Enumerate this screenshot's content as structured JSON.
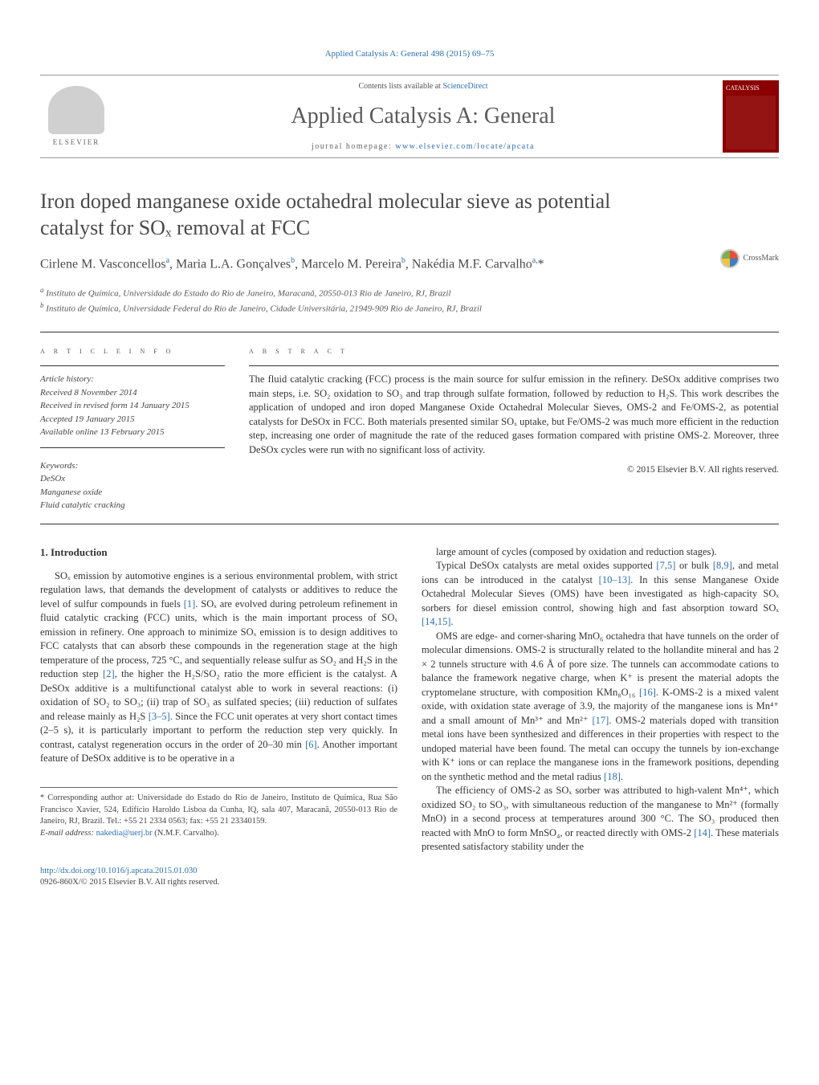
{
  "journal_ref": "Applied Catalysis A: General 498 (2015) 69–75",
  "header": {
    "contents_prefix": "Contents lists available at ",
    "contents_link": "ScienceDirect",
    "journal_title": "Applied Catalysis A: General",
    "homepage_prefix": "journal homepage: ",
    "homepage_link": "www.elsevier.com/locate/apcata",
    "elsevier_label": "ELSEVIER",
    "cover_label": "CATALYSIS"
  },
  "crossmark_label": "CrossMark",
  "title_line1": "Iron doped manganese oxide octahedral molecular sieve as potential",
  "title_line2": "catalyst for SOₓ removal at FCC",
  "authors_html": "Cirlene M. Vasconcellos<span class='sup'>a</span>, Maria L.A. Gonçalves<span class='sup'>b</span>, Marcelo M. Pereira<span class='sup'>b</span>, Nakédia M.F. Carvalho<span class='sup'>a,</span>*",
  "affiliations": {
    "a": "Instituto de Química, Universidade do Estado do Rio de Janeiro, Maracanã, 20550-013 Rio de Janeiro, RJ, Brazil",
    "b": "Instituto de Química, Universidade Federal do Rio de Janeiro, Cidade Universitária, 21949-909 Rio de Janeiro, RJ, Brazil"
  },
  "article_info": {
    "heading": "A R T I C L E   I N F O",
    "history_head": "Article history:",
    "received": "Received 8 November 2014",
    "revised": "Received in revised form 14 January 2015",
    "accepted": "Accepted 19 January 2015",
    "online": "Available online 13 February 2015",
    "keywords_head": "Keywords:",
    "kw1": "DeSOx",
    "kw2": "Manganese oxide",
    "kw3": "Fluid catalytic cracking"
  },
  "abstract": {
    "heading": "A B S T R A C T",
    "text": "The fluid catalytic cracking (FCC) process is the main source for sulfur emission in the refinery. DeSOx additive comprises two main steps, i.e. SO₂ oxidation to SO₃ and trap through sulfate formation, followed by reduction to H₂S. This work describes the application of undoped and iron doped Manganese Oxide Octahedral Molecular Sieves, OMS-2 and Fe/OMS-2, as potential catalysts for DeSOx in FCC. Both materials presented similar SOₓ uptake, but Fe/OMS-2 was much more efficient in the reduction step, increasing one order of magnitude the rate of the reduced gases formation compared with pristine OMS-2. Moreover, three DeSOx cycles were run with no significant loss of activity.",
    "copyright": "© 2015 Elsevier B.V. All rights reserved."
  },
  "section1_head": "1. Introduction",
  "col1": {
    "p1": "SOₓ emission by automotive engines is a serious environmental problem, with strict regulation laws, that demands the development of catalysts or additives to reduce the level of sulfur compounds in fuels [1]. SOₓ are evolved during petroleum refinement in fluid catalytic cracking (FCC) units, which is the main important process of SOₓ emission in refinery. One approach to minimize SOₓ emission is to design additives to FCC catalysts that can absorb these compounds in the regeneration stage at the high temperature of the process, 725 °C, and sequentially release sulfur as SO₂ and H₂S in the reduction step [2], the higher the H₂S/SO₂ ratio the more efficient is the catalyst. A DeSOx additive is a multifunctional catalyst able to work in several reactions: (i) oxidation of SO₂ to SO₃; (ii) trap of SO₃ as sulfated species; (iii) reduction of sulfates and release mainly as H₂S [3–5]. Since the FCC unit operates at very short contact times (2–5 s), it is particularly important to perform the reduction step very quickly. In contrast, catalyst regeneration occurs in the order of 20–30 min [6]. Another important feature of DeSOx additive is to be operative in a"
  },
  "col2": {
    "p1": "large amount of cycles (composed by oxidation and reduction stages).",
    "p2": "Typical DeSOx catalysts are metal oxides supported [7,5] or bulk [8,9], and metal ions can be introduced in the catalyst [10–13]. In this sense Manganese Oxide Octahedral Molecular Sieves (OMS) have been investigated as high-capacity SOₓ sorbers for diesel emission control, showing high and fast absorption toward SOₓ [14,15].",
    "p3": "OMS are edge- and corner-sharing MnO₆ octahedra that have tunnels on the order of molecular dimensions. OMS-2 is structurally related to the hollandite mineral and has 2 × 2 tunnels structure with 4.6 Å of pore size. The tunnels can accommodate cations to balance the framework negative charge, when K⁺ is present the material adopts the cryptomelane structure, with composition KMn₈O₁₆ [16]. K-OMS-2 is a mixed valent oxide, with oxidation state average of 3.9, the majority of the manganese ions is Mn⁴⁺ and a small amount of Mn³⁺ and Mn²⁺ [17]. OMS-2 materials doped with transition metal ions have been synthesized and differences in their properties with respect to the undoped material have been found. The metal can occupy the tunnels by ion-exchange with K⁺ ions or can replace the manganese ions in the framework positions, depending on the synthetic method and the metal radius [18].",
    "p4": "The efficiency of OMS-2 as SOₓ sorber was attributed to high-valent Mn⁴⁺, which oxidized SO₂ to SO₃, with simultaneous reduction of the manganese to Mn²⁺ (formally MnO) in a second process at temperatures around 300 °C. The SO₃ produced then reacted with MnO to form MnSO₄, or reacted directly with OMS-2 [14]. These materials presented satisfactory stability under the"
  },
  "footnote": {
    "corr": "* Corresponding author at: Universidade do Estado do Rio de Janeiro, Instituto de Química, Rua São Francisco Xavier, 524, Edifício Haroldo Lisboa da Cunha, IQ, sala 407, Maracanã, 20550-013 Rio de Janeiro, RJ, Brazil. Tel.: +55 21 2334 0563; fax: +55 21 23340159.",
    "email_label": "E-mail address: ",
    "email": "nakedia@uerj.br",
    "email_person": " (N.M.F. Carvalho)."
  },
  "doi": "http://dx.doi.org/10.1016/j.apcata.2015.01.030",
  "issn_line": "0926-860X/© 2015 Elsevier B.V. All rights reserved.",
  "colors": {
    "link": "#2d6fb0",
    "text": "#333333",
    "heading": "#4a4a4a",
    "cover_bg": "#8b0000"
  }
}
